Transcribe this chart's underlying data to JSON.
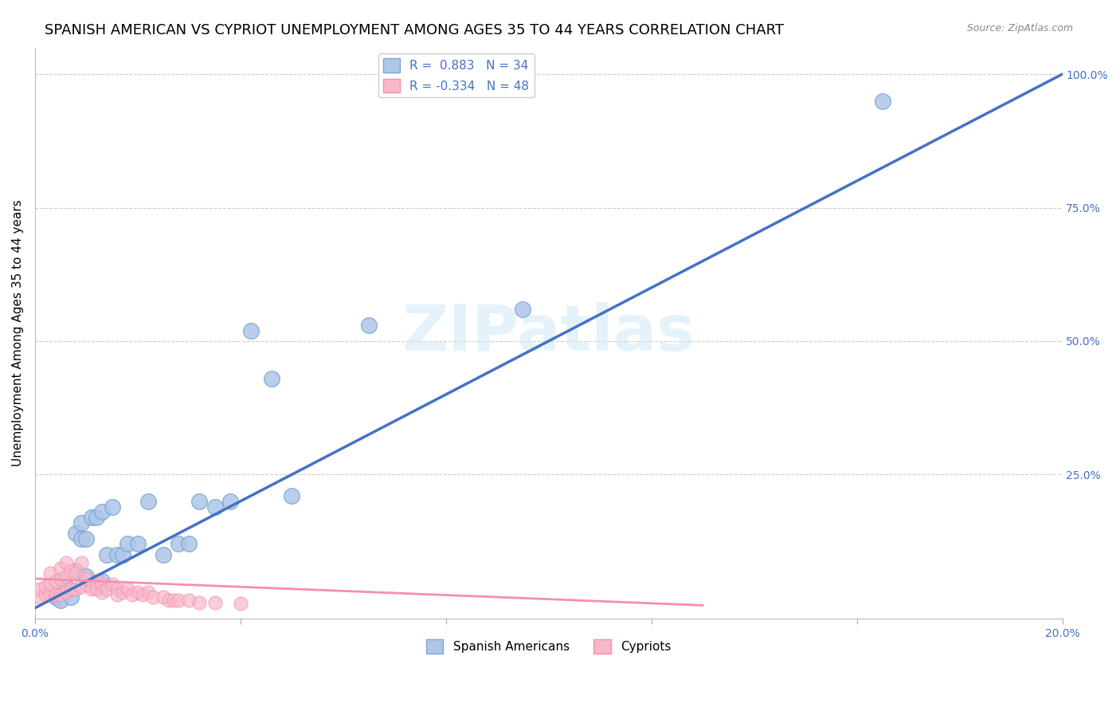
{
  "title": "SPANISH AMERICAN VS CYPRIOT UNEMPLOYMENT AMONG AGES 35 TO 44 YEARS CORRELATION CHART",
  "source": "Source: ZipAtlas.com",
  "ylabel": "Unemployment Among Ages 35 to 44 years",
  "xlim": [
    0.0,
    0.2
  ],
  "ylim": [
    -2.0,
    105.0
  ],
  "xticks": [
    0.0,
    0.04,
    0.08,
    0.12,
    0.16,
    0.2
  ],
  "xticklabels": [
    "0.0%",
    "",
    "",
    "",
    "",
    "20.0%"
  ],
  "yticks_right": [
    0.0,
    25.0,
    50.0,
    75.0,
    100.0
  ],
  "yticklabels_right": [
    "",
    "25.0%",
    "50.0%",
    "75.0%",
    "100.0%"
  ],
  "grid_color": "#cccccc",
  "background_color": "#ffffff",
  "watermark": "ZIPatlas",
  "blue_scatter_x": [
    0.004,
    0.005,
    0.006,
    0.007,
    0.008,
    0.008,
    0.009,
    0.009,
    0.01,
    0.01,
    0.011,
    0.012,
    0.012,
    0.013,
    0.013,
    0.014,
    0.015,
    0.016,
    0.017,
    0.018,
    0.02,
    0.022,
    0.025,
    0.028,
    0.03,
    0.032,
    0.035,
    0.038,
    0.042,
    0.046,
    0.05,
    0.065,
    0.095,
    0.165
  ],
  "blue_scatter_y": [
    2.0,
    1.5,
    4.0,
    2.0,
    7.0,
    14.0,
    13.0,
    16.0,
    6.0,
    13.0,
    17.0,
    17.0,
    4.0,
    5.0,
    18.0,
    10.0,
    19.0,
    10.0,
    10.0,
    12.0,
    12.0,
    20.0,
    10.0,
    12.0,
    12.0,
    20.0,
    19.0,
    20.0,
    52.0,
    43.0,
    21.0,
    53.0,
    56.0,
    95.0
  ],
  "pink_scatter_x": [
    0.001,
    0.001,
    0.002,
    0.002,
    0.003,
    0.003,
    0.003,
    0.004,
    0.004,
    0.005,
    0.005,
    0.005,
    0.006,
    0.006,
    0.006,
    0.007,
    0.007,
    0.008,
    0.008,
    0.009,
    0.009,
    0.01,
    0.01,
    0.011,
    0.011,
    0.012,
    0.012,
    0.013,
    0.013,
    0.014,
    0.015,
    0.016,
    0.016,
    0.017,
    0.018,
    0.019,
    0.02,
    0.021,
    0.022,
    0.023,
    0.025,
    0.026,
    0.027,
    0.028,
    0.03,
    0.032,
    0.035,
    0.04
  ],
  "pink_scatter_y": [
    2.0,
    3.5,
    2.5,
    4.0,
    2.5,
    4.5,
    6.5,
    2.5,
    5.0,
    2.5,
    5.5,
    7.5,
    3.0,
    6.0,
    8.5,
    3.5,
    7.0,
    3.5,
    6.5,
    4.0,
    8.5,
    4.5,
    5.5,
    4.0,
    3.5,
    5.0,
    3.5,
    4.5,
    3.0,
    3.5,
    4.5,
    3.5,
    2.5,
    3.0,
    3.5,
    2.5,
    3.0,
    2.5,
    3.0,
    2.0,
    2.0,
    1.5,
    1.5,
    1.5,
    1.5,
    1.0,
    1.0,
    0.8
  ],
  "blue_line_x": [
    0.0,
    0.2
  ],
  "blue_line_y": [
    0.0,
    100.0
  ],
  "blue_line_color": "#4472c4",
  "pink_line_x": [
    0.0,
    0.13
  ],
  "pink_line_y": [
    5.5,
    0.5
  ],
  "pink_line_color": "#f48fb1",
  "blue_fill_color": "#aec6e8",
  "blue_edge_color": "#7ba7d4",
  "pink_fill_color": "#f9b8c8",
  "pink_edge_color": "#f48fb1",
  "legend_R_blue": "0.883",
  "legend_N_blue": "34",
  "legend_R_pink": "-0.334",
  "legend_N_pink": "48",
  "right_axis_color": "#4472c4",
  "title_fontsize": 13,
  "axis_label_fontsize": 11,
  "tick_fontsize": 10
}
